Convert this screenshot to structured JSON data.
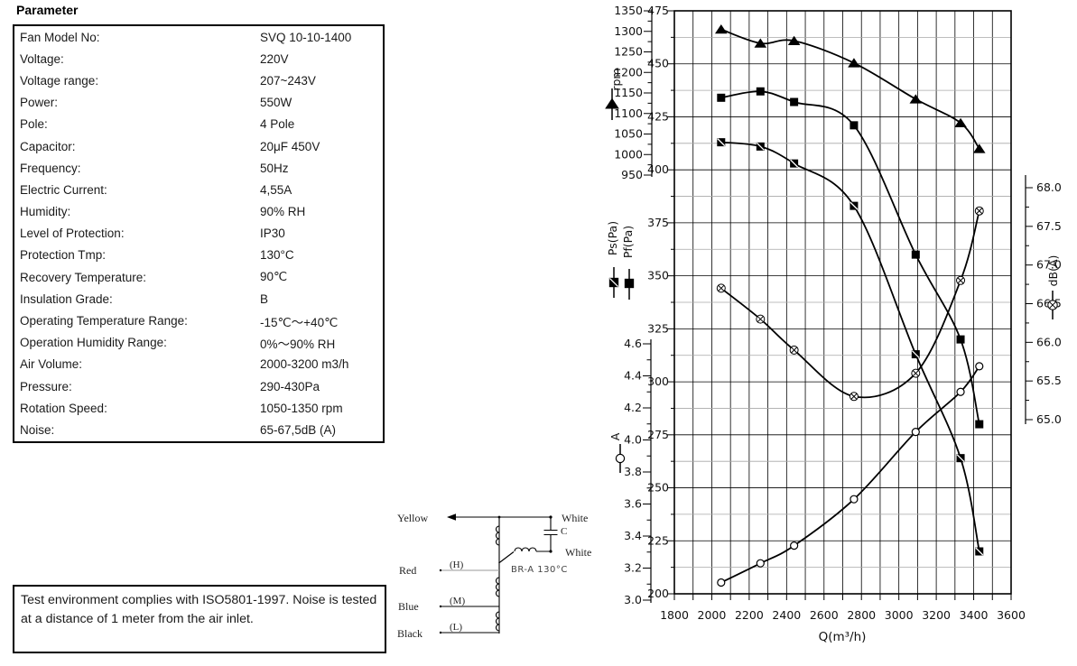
{
  "title": "Parameter",
  "table": {
    "rows": [
      {
        "label": "Fan Model No:",
        "value": "SVQ 10-10-1400"
      },
      {
        "label": "Voltage:",
        "value": "220V"
      },
      {
        "label": "Voltage range:",
        "value": "207~243V"
      },
      {
        "label": "Power:",
        "value": "550W"
      },
      {
        "label": "Pole:",
        "value": "4 Pole"
      },
      {
        "label": "Capacitor:",
        "value": "20μF 450V"
      },
      {
        "label": "Frequency:",
        "value": "50Hz"
      },
      {
        "label": "Electric Current:",
        "value": "4,55A"
      },
      {
        "label": "Humidity:",
        "value": "90% RH"
      },
      {
        "label": "Level of Protection:",
        "value": "IP30"
      },
      {
        "label": "Protection Tmp:",
        "value": "130°C"
      },
      {
        "label": "Recovery Temperature:",
        "value": "90℃"
      },
      {
        "label": "Insulation Grade:",
        "value": "B"
      },
      {
        "label": "Operating Temperature Range:",
        "value": "-15℃～+40℃"
      },
      {
        "label": "Operation Humidity Range:",
        "value": "0%～90% RH"
      },
      {
        "label": "Air Volume:",
        "value": "2000-3200 m3/h"
      },
      {
        "label": "Pressure:",
        "value": "290-430Pa"
      },
      {
        "label": "Rotation Speed:",
        "value": "1050-1350 rpm"
      },
      {
        "label": "Noise:",
        "value": "65-67,5dB (A)"
      }
    ]
  },
  "note": {
    "text": "Test environment complies with ISO5801-1997. Noise is tested at a distance of 1 meter from the air inlet."
  },
  "wiring": {
    "left_terminals": [
      "Yellow",
      "Red",
      "Blue",
      "Black"
    ],
    "right_terminals": [
      "White",
      "White"
    ],
    "taps": [
      "(H)",
      "(M)",
      "(L)"
    ],
    "capacitor_label": "C",
    "protector_label": "BR-A 130°C"
  },
  "chart_data": {
    "type": "line",
    "title": "",
    "xlabel": "Q(m³/h)",
    "x_range": [
      1800,
      3600
    ],
    "x_ticks": [
      1800,
      2000,
      2200,
      2400,
      2600,
      2800,
      3000,
      3200,
      3400,
      3600
    ],
    "x_minor_step": 100,
    "axes": {
      "pressure": {
        "label": "Pa",
        "range": [
          200,
          475
        ],
        "tick_step": 25,
        "minor_step": 12.5
      },
      "rpm": {
        "label": "rpm",
        "range": [
          950,
          1350
        ],
        "tick_step": 50,
        "minor_step": 25
      },
      "current": {
        "label": "A",
        "range": [
          3.0,
          4.6
        ],
        "tick_step": 0.2,
        "minor_step": 0.1
      },
      "noise": {
        "label": "dB(A)",
        "range": [
          65.0,
          68.0
        ],
        "tick_step": 0.5,
        "minor_step": 0.25
      }
    },
    "x": [
      2050,
      2260,
      2440,
      2760,
      3090,
      3330,
      3430
    ],
    "series": [
      {
        "name": "rpm",
        "axis": "rpm",
        "marker": "triangle",
        "values": [
          1305,
          1271,
          1277,
          1223,
          1135,
          1077,
          1014
        ]
      },
      {
        "name": "Pf(Pa)",
        "axis": "pressure",
        "marker": "square",
        "values": [
          434,
          437,
          432,
          421,
          360,
          320,
          280
        ]
      },
      {
        "name": "Ps(Pa)",
        "axis": "pressure",
        "marker": "square-slash",
        "values": [
          413,
          411,
          403,
          383,
          313,
          264,
          220
        ]
      },
      {
        "name": "dB(A)",
        "axis": "noise",
        "marker": "circle-x",
        "values": [
          66.7,
          66.3,
          65.9,
          65.3,
          65.6,
          66.8,
          67.7
        ]
      },
      {
        "name": "A",
        "axis": "current",
        "marker": "circle",
        "values": [
          3.11,
          3.23,
          3.34,
          3.63,
          4.05,
          4.3,
          4.46
        ]
      }
    ],
    "grid": "on",
    "colors": {
      "ink": "#000000",
      "minor_grid": "#a8a8a8"
    }
  }
}
